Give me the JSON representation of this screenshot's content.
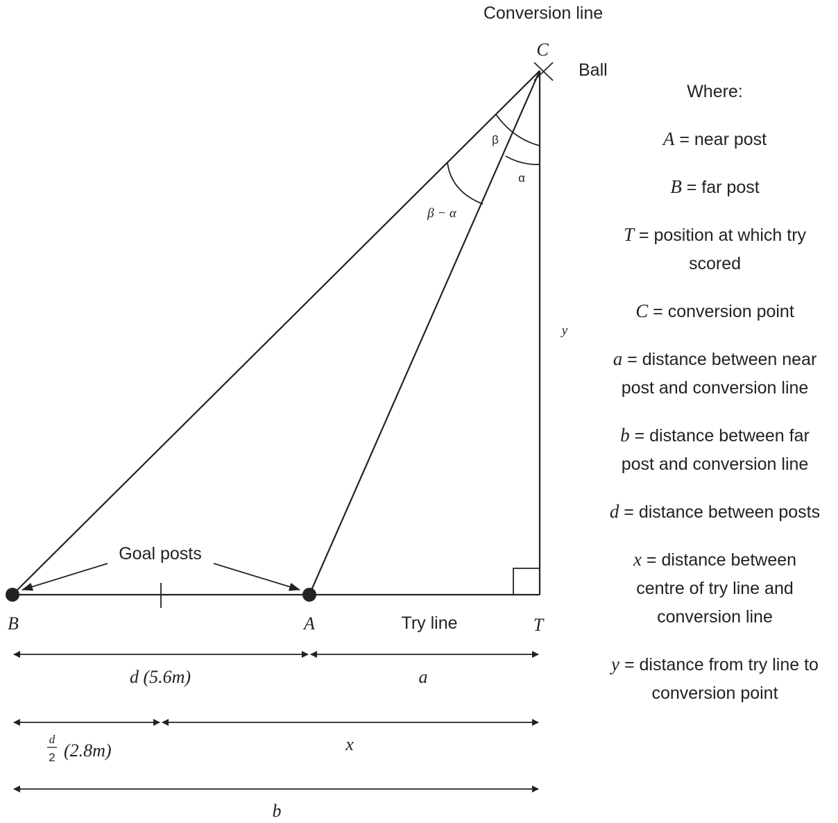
{
  "diagram": {
    "conversion_line_label": "Conversion line",
    "ball_label": "Ball",
    "goal_posts_label": "Goal posts",
    "try_line_label": "Try line",
    "points": {
      "C": "C",
      "B": "B",
      "A": "A",
      "T": "T"
    },
    "angles": {
      "beta": "β",
      "alpha": "α",
      "beta_minus_alpha": "β − α"
    },
    "y_label": "y",
    "dimensions": {
      "d_label": "d (5.6m)",
      "a_label": "a",
      "half_d_numerator": "d",
      "half_d_denominator": "2",
      "half_d_value": "(2.8m)",
      "x_label": "x",
      "b_label": "b"
    }
  },
  "legend": {
    "title": "Where:",
    "items": [
      {
        "symbol": "A",
        "text": " = near post"
      },
      {
        "symbol": "B",
        "text": " = far post"
      },
      {
        "symbol": "T",
        "text": " = position at which try scored"
      },
      {
        "symbol": "C",
        "text": " = conversion point"
      },
      {
        "symbol": "a",
        "text": " = distance between near post and conversion line"
      },
      {
        "symbol": "b",
        "text": " = distance between far post and conversion line"
      },
      {
        "symbol": "d",
        "text": " = distance between posts"
      },
      {
        "symbol": "x",
        "text": " = distance between centre of try line and conversion line"
      },
      {
        "symbol": "y",
        "text": " = distance from try line to conversion point"
      }
    ]
  }
}
